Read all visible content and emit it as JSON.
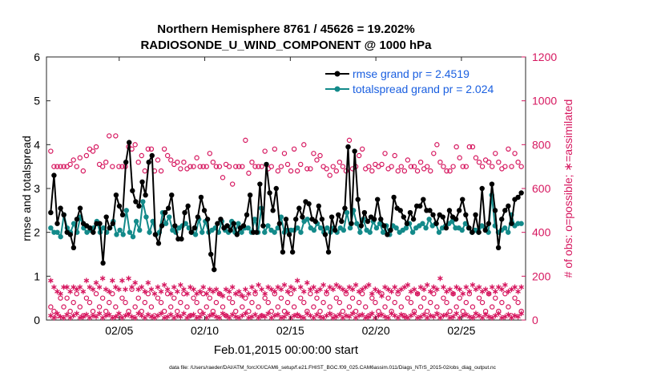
{
  "chart_data": {
    "type": "line",
    "title": "Northern Hemisphere 8761 / 45626 = 19.202%",
    "subtitle": "RADIOSONDE_U_WIND_COMPONENT @ 1000 hPa",
    "xlabel": "Feb.01,2015 00:00:00 start",
    "ylabel": "rmse and totalspread",
    "y2label": "# of obs: o=possible; ∗=assimilated",
    "footer": "data file: /Users/raeder/DAI/ATM_forcXX/CAM6_setup/f.e21.FHIST_BGC.f09_025.CAM6assim.011/Diags_NTrS_2015-02/obs_diag_output.nc",
    "xlim": [
      0.75,
      28.75
    ],
    "ylim": [
      0,
      6
    ],
    "y2lim": [
      0,
      1200
    ],
    "xticks": [
      5,
      10,
      15,
      20,
      25
    ],
    "xticklabels": [
      "02/05",
      "02/10",
      "02/15",
      "02/20",
      "02/25"
    ],
    "yticks": [
      0,
      1,
      2,
      3,
      4,
      5,
      6
    ],
    "yticklabels": [
      "0",
      "1",
      "2",
      "3",
      "4",
      "5",
      "6"
    ],
    "y2ticks": [
      0,
      200,
      400,
      600,
      800,
      1000,
      1200
    ],
    "y2ticklabels": [
      "0",
      "200",
      "400",
      "600",
      "800",
      "1000",
      "1200"
    ],
    "legend_position": "top-right",
    "colors": {
      "rmse": "#000000",
      "spread": "#138a8a",
      "obs": "#d6175f",
      "legend_text": "#1a5fe0"
    },
    "series": [
      {
        "name": "rmse grand pr = 2.4519",
        "values": [
          2.45,
          3.3,
          2.2,
          2.55,
          2.4,
          2.0,
          1.95,
          1.65,
          2.3,
          2.55,
          2.2,
          2.15,
          2.1,
          2.0,
          2.2,
          2.2,
          1.3,
          2.35,
          2.1,
          2.2,
          2.85,
          2.6,
          2.4,
          3.6,
          4.05,
          2.95,
          2.7,
          2.6,
          3.15,
          2.85,
          3.6,
          3.75,
          1.95,
          1.75,
          2.15,
          2.45,
          2.55,
          2.85,
          2.15,
          1.85,
          1.85,
          2.45,
          2.6,
          2.0,
          2.1,
          2.35,
          2.8,
          2.5,
          2.3,
          1.5,
          1.15,
          2.2,
          2.3,
          2.1,
          2.15,
          2.05,
          2.2,
          1.95,
          2.1,
          2.15,
          2.4,
          2.85,
          2.0,
          2.0,
          3.1,
          2.15,
          3.55,
          2.9,
          2.5,
          3.0,
          2.2,
          1.55,
          2.3,
          1.95,
          1.55,
          2.3,
          2.55,
          2.35,
          2.7,
          2.65,
          2.3,
          2.25,
          2.6,
          2.3,
          1.95,
          1.55,
          2.35,
          2.05,
          2.4,
          2.25,
          2.55,
          3.95,
          2.2,
          3.85,
          2.75,
          2.15,
          2.45,
          2.25,
          2.35,
          2.3,
          2.75,
          2.3,
          2.15,
          1.95,
          2.05,
          2.8,
          2.55,
          2.5,
          2.35,
          2.2,
          2.45,
          2.3,
          2.6,
          2.6,
          2.75,
          2.5,
          2.5,
          2.4,
          2.2,
          2.4,
          2.35,
          2.1,
          2.5,
          2.35,
          2.3,
          2.5,
          2.75,
          2.4,
          2.1,
          2.0,
          2.4,
          2.0,
          3.0,
          2.05,
          2.2,
          3.1,
          2.5,
          1.65,
          2.3,
          2.5,
          2.6,
          2.2,
          2.75,
          2.8,
          2.9
        ]
      },
      {
        "name": "totalspread grand pr = 2.024",
        "values": [
          2.1,
          2.0,
          2.0,
          1.9,
          2.4,
          2.1,
          2.0,
          2.2,
          2.0,
          2.35,
          2.1,
          2.0,
          2.05,
          2.1,
          2.25,
          2.0,
          2.1,
          2.0,
          2.1,
          2.25,
          1.95,
          2.05,
          1.95,
          2.5,
          2.0,
          1.9,
          2.25,
          2.05,
          2.7,
          2.35,
          2.0,
          2.25,
          1.95,
          2.0,
          2.45,
          2.2,
          2.35,
          2.05,
          2.0,
          2.1,
          2.15,
          2.2,
          2.1,
          2.0,
          1.95,
          2.3,
          2.0,
          2.25,
          2.0,
          2.05,
          2.1,
          2.0,
          2.25,
          2.05,
          2.0,
          2.25,
          2.0,
          2.2,
          2.0,
          2.1,
          2.1,
          2.0,
          2.3,
          2.0,
          2.55,
          2.0,
          2.15,
          2.05,
          2.0,
          2.1,
          2.35,
          2.0,
          2.05,
          2.05,
          2.05,
          2.1,
          2.0,
          2.25,
          2.3,
          2.1,
          2.05,
          2.2,
          2.1,
          2.0,
          2.1,
          2.0,
          2.1,
          2.0,
          2.1,
          2.05,
          2.45,
          2.1,
          2.5,
          2.2,
          2.0,
          2.3,
          2.05,
          2.0,
          2.25,
          2.1,
          2.2,
          2.0,
          2.15,
          1.95,
          2.15,
          2.1,
          2.0,
          2.05,
          2.1,
          2.2,
          2.0,
          2.1,
          2.15,
          2.2,
          2.1,
          2.3,
          2.15,
          2.2,
          2.0,
          2.1,
          2.15,
          2.2,
          2.25,
          2.1,
          2.1,
          2.05,
          2.2,
          2.1,
          2.0,
          2.05,
          2.0,
          2.15,
          2.1,
          2.0,
          2.85,
          2.15,
          2.0,
          2.05,
          2.1,
          2.0,
          2.4,
          2.15,
          2.2,
          2.2
        ]
      }
    ],
    "obs_possible": [
      770,
      700,
      700,
      700,
      700,
      700,
      710,
      730,
      700,
      740,
      680,
      750,
      780,
      770,
      790,
      710,
      700,
      720,
      840,
      700,
      840,
      700,
      700,
      700,
      790,
      780,
      800,
      720,
      750,
      680,
      780,
      780,
      680,
      730,
      680,
      780,
      750,
      730,
      710,
      720,
      690,
      720,
      690,
      700,
      700,
      740,
      700,
      700,
      700,
      760,
      720,
      700,
      700,
      650,
      710,
      700,
      620,
      700,
      700,
      700,
      820,
      670,
      720,
      700,
      700,
      700,
      770,
      690,
      700,
      780,
      680,
      700,
      760,
      710,
      680,
      780,
      680,
      710,
      800,
      690,
      690,
      760,
      730,
      750,
      700,
      690,
      660,
      700,
      680,
      720,
      700,
      680,
      820,
      690,
      700,
      750,
      780,
      690,
      700,
      680,
      710,
      700,
      710,
      760,
      690,
      700,
      750,
      680,
      700,
      680,
      730,
      700,
      700,
      680,
      720,
      690,
      700,
      680,
      760,
      800,
      720,
      700,
      680,
      680,
      700,
      790,
      740,
      700,
      700,
      790,
      790,
      740,
      720,
      700,
      730,
      720,
      700,
      760,
      720,
      690,
      700,
      780,
      700,
      760,
      720,
      700
    ],
    "obs_possible_low": [
      60,
      40,
      20,
      100,
      60,
      100,
      40,
      80,
      120,
      60,
      20,
      100,
      80,
      40,
      120,
      60,
      100,
      40,
      80,
      120,
      60,
      20,
      100,
      80,
      40,
      140,
      60,
      100,
      40,
      80,
      120,
      60,
      20,
      100,
      80,
      40,
      120,
      60,
      100,
      40,
      80,
      120,
      60,
      20,
      100,
      80,
      40,
      120,
      60,
      100,
      40,
      80,
      120,
      60,
      20,
      100,
      80,
      40,
      120,
      60,
      100,
      40,
      80,
      120,
      60,
      20,
      100,
      80,
      40,
      120,
      60,
      100,
      40,
      80,
      120,
      60,
      20,
      100,
      80,
      40,
      120,
      60,
      100,
      40,
      80,
      120,
      60,
      20,
      100,
      80,
      40,
      120,
      60,
      100,
      40,
      80,
      120,
      60,
      20,
      100,
      80,
      40,
      120,
      60,
      100,
      40,
      80,
      120,
      60,
      20,
      100,
      80,
      40,
      120,
      60,
      100,
      40,
      80,
      120,
      60,
      20,
      100,
      80,
      40,
      120,
      60,
      100,
      40,
      80,
      120,
      60,
      20,
      100,
      80,
      40,
      120,
      60,
      100,
      40,
      80,
      120,
      60,
      20,
      100,
      80,
      40
    ],
    "obs_assimilated": [
      180,
      150,
      130,
      120,
      150,
      150,
      130,
      150,
      140,
      150,
      130,
      180,
      150,
      140,
      170,
      150,
      190,
      140,
      130,
      180,
      150,
      140,
      180,
      140,
      190,
      150,
      170,
      140,
      150,
      130,
      170,
      140,
      120,
      150,
      130,
      160,
      140,
      120,
      150,
      130,
      160,
      140,
      120,
      150,
      140,
      120,
      130,
      150,
      120,
      140,
      130,
      140,
      120,
      110,
      140,
      130,
      150,
      120,
      130,
      110,
      140,
      120,
      150,
      130,
      160,
      140,
      120,
      150,
      140,
      130,
      150,
      140,
      160,
      130,
      150,
      140,
      180,
      150,
      130,
      170,
      140,
      150,
      130,
      140,
      160,
      130,
      150,
      140,
      160,
      150,
      140,
      130,
      150,
      140,
      160,
      130,
      140,
      150,
      160,
      120,
      140,
      130,
      110,
      150,
      140,
      130,
      150,
      130,
      140,
      150,
      160,
      130,
      140,
      120,
      150,
      140,
      160,
      130,
      150,
      140,
      190,
      150,
      130,
      140,
      120,
      150,
      140,
      120,
      150,
      130,
      160,
      140,
      150,
      130,
      140,
      120,
      150,
      130,
      150,
      140,
      160,
      130,
      140,
      150,
      130,
      150
    ],
    "obs_assimilated_low": [
      20,
      10,
      30,
      15,
      10,
      25,
      10,
      20,
      30,
      10,
      15,
      25,
      10,
      20,
      15,
      30,
      10,
      20,
      25,
      10,
      15,
      30,
      10,
      20,
      25,
      15,
      10,
      30,
      20,
      10,
      25,
      15,
      10,
      20,
      30,
      10,
      15,
      25,
      10,
      20,
      15,
      30,
      10,
      20,
      25,
      10,
      15,
      30,
      10,
      20,
      25,
      15,
      10,
      30,
      20,
      10,
      25,
      15,
      10,
      20,
      30,
      10,
      15,
      25,
      10,
      20,
      15,
      30,
      10,
      20,
      25,
      10,
      15,
      30,
      10,
      20,
      25,
      15,
      10,
      30,
      20,
      10,
      25,
      15,
      10,
      20,
      30,
      10,
      15,
      25,
      10,
      20,
      15,
      30,
      10,
      20,
      25,
      10,
      15,
      30,
      10,
      20,
      25,
      15,
      10,
      30,
      20,
      10,
      25,
      15,
      10,
      20,
      30,
      10,
      15,
      25,
      10,
      20,
      15,
      30,
      10,
      20,
      25,
      10,
      15,
      30,
      10,
      20,
      25,
      15,
      10,
      30,
      20,
      10,
      25,
      15,
      10,
      20,
      30,
      10,
      15,
      25,
      10,
      20,
      15,
      30
    ]
  }
}
